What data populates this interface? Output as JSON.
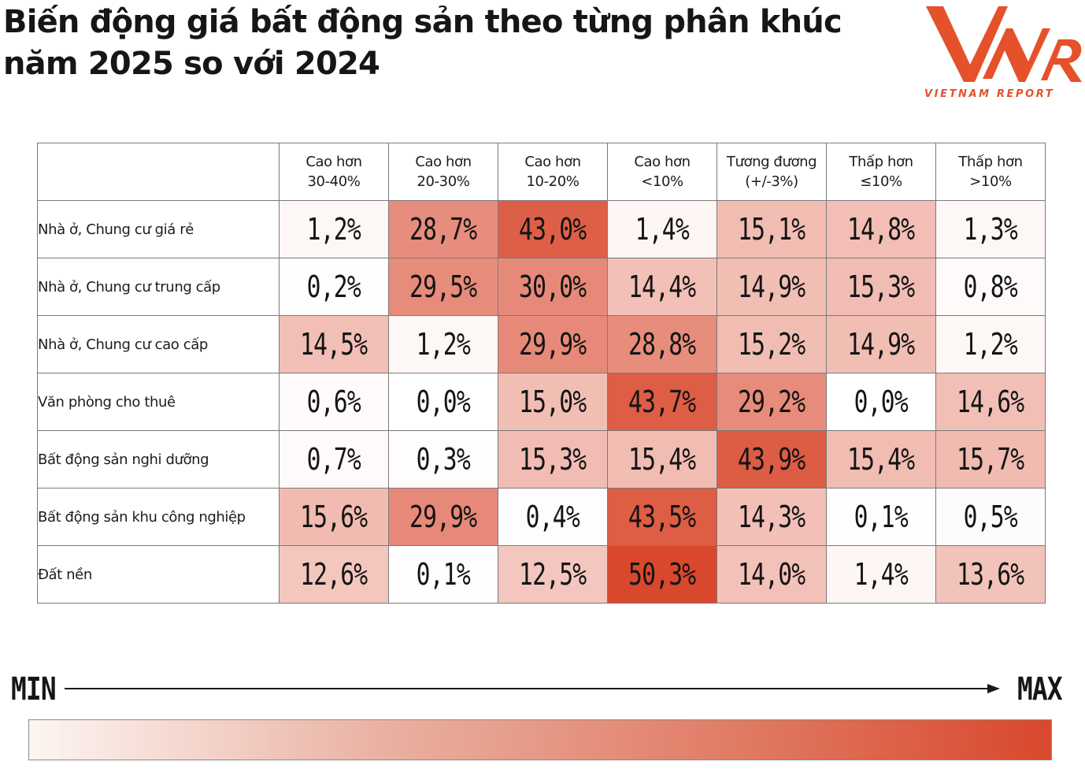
{
  "title_lines": [
    "Biến động giá bất động sản theo từng phân khúc",
    "năm 2025 so với 2024"
  ],
  "logo": {
    "letters": "VNR",
    "tagline": "VIETNAM REPORT",
    "color": "#e4512b"
  },
  "legend": {
    "min_label": "MIN",
    "max_label": "MAX",
    "min_color": "#fdf5f2",
    "max_color": "#d9482d"
  },
  "chart_data": {
    "type": "heatmap",
    "title": "Biến động giá bất động sản theo từng phân khúc năm 2025 so với 2024",
    "columns": [
      [
        "Cao hơn",
        "30-40%"
      ],
      [
        "Cao hơn",
        "20-30%"
      ],
      [
        "Cao hơn",
        "10-20%"
      ],
      [
        "Cao hơn",
        "<10%"
      ],
      [
        "Tương đương",
        "(+/-3%)"
      ],
      [
        "Thấp hơn",
        "≤10%"
      ],
      [
        "Thấp hơn",
        ">10%"
      ]
    ],
    "rows": [
      {
        "label": "Nhà ở, Chung cư giá rẻ",
        "values": [
          1.2,
          28.7,
          43.0,
          1.4,
          15.1,
          14.8,
          1.3
        ]
      },
      {
        "label": "Nhà ở, Chung cư trung cấp",
        "values": [
          0.2,
          29.5,
          30.0,
          14.4,
          14.9,
          15.3,
          0.8
        ]
      },
      {
        "label": "Nhà ở, Chung cư cao cấp",
        "values": [
          14.5,
          1.2,
          29.9,
          28.8,
          15.2,
          14.9,
          1.2
        ]
      },
      {
        "label": "Văn phòng cho thuê",
        "values": [
          0.6,
          0.0,
          15.0,
          43.7,
          29.2,
          0.0,
          14.6
        ]
      },
      {
        "label": "Bất động sản nghi dưỡng",
        "values": [
          0.7,
          0.3,
          15.3,
          15.4,
          43.9,
          15.4,
          15.7
        ]
      },
      {
        "label": "Bất động sản khu công nghiệp",
        "values": [
          15.6,
          29.9,
          0.4,
          43.5,
          14.3,
          0.1,
          0.5
        ]
      },
      {
        "label": "Đất nền",
        "values": [
          12.6,
          0.1,
          12.5,
          50.3,
          14.0,
          1.4,
          13.6
        ]
      }
    ],
    "unit": "%",
    "color_scale": [
      "#ffffff",
      "#d9482d"
    ]
  }
}
